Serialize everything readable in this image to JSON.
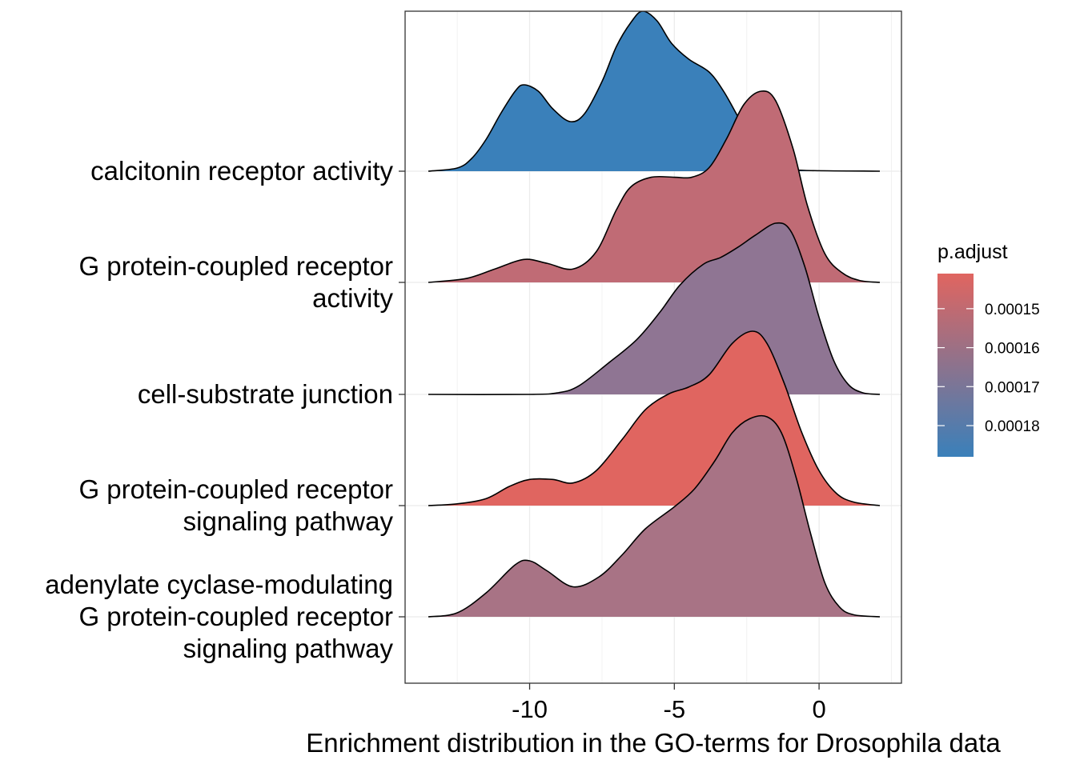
{
  "chart_data": {
    "type": "ridgeline",
    "xlabel": "Enrichment distribution in the GO-terms for Drosophila data",
    "ylabel": "",
    "xlim": [
      -13.5,
      2.1
    ],
    "x_ticks": [
      -10,
      -5,
      0
    ],
    "x_tick_labels": [
      "-10",
      "-5",
      "0"
    ],
    "grid": true,
    "categories": [
      "calcitonin receptor activity",
      "G protein-coupled receptor activity",
      "cell-substrate junction",
      "G protein-coupled receptor signaling pathway",
      "adenylate cyclase-modulating G protein-coupled receptor signaling pathway"
    ],
    "series": [
      {
        "label_lines": [
          "calcitonin receptor activity"
        ],
        "p_adjust": 0.000188,
        "color": "#3a80ba",
        "density": [
          [
            -13.5,
            0
          ],
          [
            -12.5,
            0.02
          ],
          [
            -12,
            0.08
          ],
          [
            -11.5,
            0.2
          ],
          [
            -11,
            0.36
          ],
          [
            -10.5,
            0.5
          ],
          [
            -10.2,
            0.54
          ],
          [
            -9.7,
            0.5
          ],
          [
            -9.2,
            0.39
          ],
          [
            -8.6,
            0.31
          ],
          [
            -8.1,
            0.36
          ],
          [
            -7.5,
            0.56
          ],
          [
            -7,
            0.78
          ],
          [
            -6.5,
            0.93
          ],
          [
            -6.1,
            1.0
          ],
          [
            -5.6,
            0.94
          ],
          [
            -5.1,
            0.8
          ],
          [
            -4.5,
            0.7
          ],
          [
            -3.8,
            0.62
          ],
          [
            -3.3,
            0.5
          ],
          [
            -2.8,
            0.34
          ],
          [
            -2.3,
            0.18
          ],
          [
            -1.7,
            0.06
          ],
          [
            -1.2,
            0.02
          ],
          [
            -0.5,
            0.005
          ],
          [
            2.1,
            0
          ]
        ]
      },
      {
        "label_lines": [
          "G protein-coupled receptor",
          "activity"
        ],
        "p_adjust": 0.000158,
        "color": "#c06b75",
        "density": [
          [
            -13.5,
            0
          ],
          [
            -12.2,
            0.02
          ],
          [
            -11.2,
            0.07
          ],
          [
            -10.2,
            0.12
          ],
          [
            -9.4,
            0.1
          ],
          [
            -8.5,
            0.07
          ],
          [
            -7.7,
            0.16
          ],
          [
            -7,
            0.38
          ],
          [
            -6.5,
            0.5
          ],
          [
            -5.8,
            0.55
          ],
          [
            -5,
            0.55
          ],
          [
            -4.4,
            0.55
          ],
          [
            -3.8,
            0.6
          ],
          [
            -3.2,
            0.75
          ],
          [
            -2.6,
            0.93
          ],
          [
            -2.0,
            1.0
          ],
          [
            -1.5,
            0.95
          ],
          [
            -0.9,
            0.7
          ],
          [
            -0.4,
            0.4
          ],
          [
            0.2,
            0.15
          ],
          [
            0.8,
            0.05
          ],
          [
            1.4,
            0.01
          ],
          [
            2.1,
            0
          ]
        ]
      },
      {
        "label_lines": [
          "cell-substrate junction"
        ],
        "p_adjust": 0.000173,
        "color": "#8f7593",
        "density": [
          [
            -13.5,
            0
          ],
          [
            -10,
            0
          ],
          [
            -9,
            0.01
          ],
          [
            -8.3,
            0.05
          ],
          [
            -7.3,
            0.18
          ],
          [
            -6.3,
            0.32
          ],
          [
            -5.5,
            0.48
          ],
          [
            -4.8,
            0.64
          ],
          [
            -4,
            0.76
          ],
          [
            -3.4,
            0.8
          ],
          [
            -2.8,
            0.86
          ],
          [
            -2.2,
            0.93
          ],
          [
            -1.5,
            1.0
          ],
          [
            -1.0,
            0.96
          ],
          [
            -0.5,
            0.75
          ],
          [
            0,
            0.45
          ],
          [
            0.5,
            0.2
          ],
          [
            1,
            0.06
          ],
          [
            1.5,
            0.01
          ],
          [
            2.1,
            0
          ]
        ]
      },
      {
        "label_lines": [
          "G protein-coupled receptor",
          "signaling pathway"
        ],
        "p_adjust": 0.000145,
        "color": "#e06560",
        "density": [
          [
            -13.5,
            0
          ],
          [
            -12.5,
            0.01
          ],
          [
            -11.5,
            0.04
          ],
          [
            -10.7,
            0.11
          ],
          [
            -10,
            0.15
          ],
          [
            -9.2,
            0.15
          ],
          [
            -8.5,
            0.13
          ],
          [
            -7.7,
            0.2
          ],
          [
            -6.8,
            0.38
          ],
          [
            -6,
            0.55
          ],
          [
            -5.2,
            0.64
          ],
          [
            -4.5,
            0.68
          ],
          [
            -3.8,
            0.75
          ],
          [
            -3.0,
            0.93
          ],
          [
            -2.3,
            1.0
          ],
          [
            -1.8,
            0.93
          ],
          [
            -1.2,
            0.7
          ],
          [
            -0.6,
            0.42
          ],
          [
            0,
            0.2
          ],
          [
            0.6,
            0.07
          ],
          [
            1.2,
            0.02
          ],
          [
            2.1,
            0
          ]
        ]
      },
      {
        "label_lines": [
          "adenylate cyclase-modulating",
          "G protein-coupled receptor",
          "signaling pathway"
        ],
        "p_adjust": 0.000163,
        "color": "#a87385",
        "density": [
          [
            -13.5,
            0
          ],
          [
            -12.5,
            0.02
          ],
          [
            -11.5,
            0.12
          ],
          [
            -10.5,
            0.26
          ],
          [
            -10,
            0.28
          ],
          [
            -9.4,
            0.23
          ],
          [
            -8.5,
            0.15
          ],
          [
            -7.6,
            0.2
          ],
          [
            -6.8,
            0.31
          ],
          [
            -6,
            0.44
          ],
          [
            -5,
            0.55
          ],
          [
            -4.3,
            0.64
          ],
          [
            -3.6,
            0.78
          ],
          [
            -3.0,
            0.92
          ],
          [
            -2.4,
            0.99
          ],
          [
            -1.8,
            1.0
          ],
          [
            -1.3,
            0.92
          ],
          [
            -0.8,
            0.7
          ],
          [
            -0.3,
            0.42
          ],
          [
            0.2,
            0.17
          ],
          [
            0.7,
            0.05
          ],
          [
            1.2,
            0.01
          ],
          [
            2.1,
            0
          ]
        ]
      }
    ],
    "legend": {
      "title": "p.adjust",
      "position": "right",
      "tick_values": [
        0.00015,
        0.00016,
        0.00017,
        0.00018
      ],
      "tick_labels": [
        "0.00015",
        "0.00016",
        "0.00017",
        "0.00018"
      ],
      "range": [
        0.000141,
        0.000188
      ],
      "color_low_value": "#e06560",
      "color_high_value": "#3a80ba"
    }
  }
}
